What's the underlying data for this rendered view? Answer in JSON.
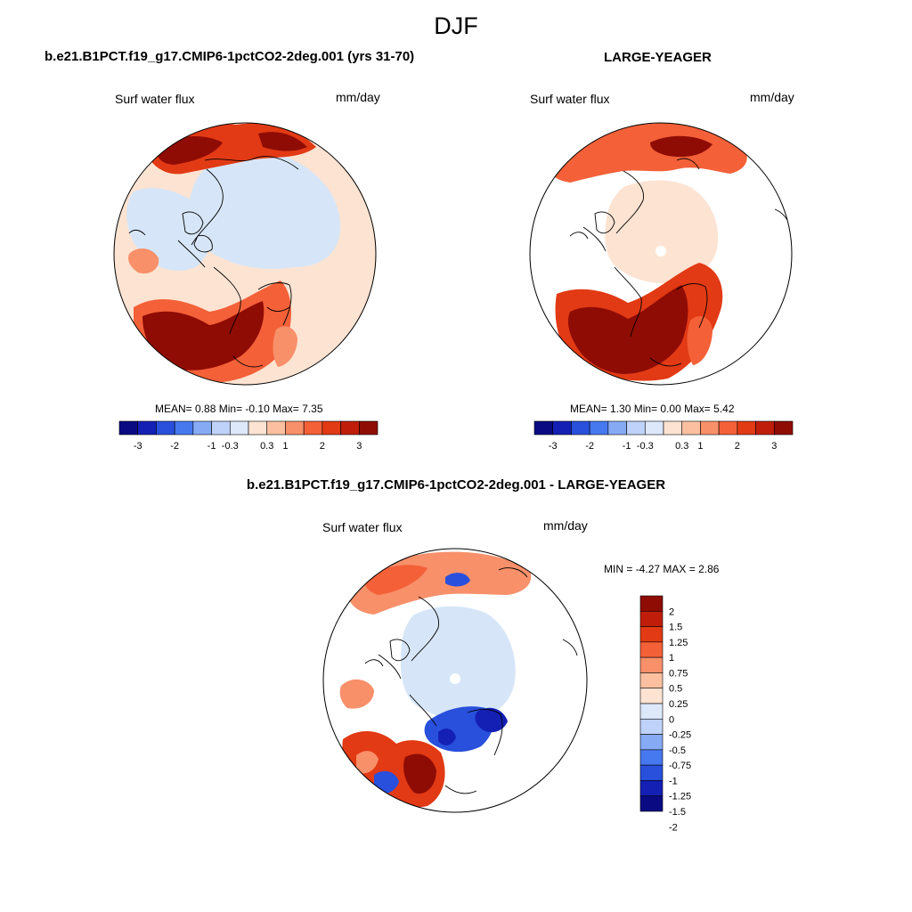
{
  "season": "DJF",
  "panels": {
    "case": {
      "title": "b.e21.B1PCT.f19_g17.CMIP6-1pctCO2-2deg.001 (yrs 31-70)",
      "variable": "Surf water flux",
      "units": "mm/day",
      "stats": {
        "mean_label": "MEAN=",
        "mean": "0.88",
        "min_label": "Min=",
        "min": "-0.10",
        "max_label": "Max=",
        "max": "7.35"
      }
    },
    "obs": {
      "title": "LARGE-YEAGER",
      "variable": "Surf water flux",
      "units": "mm/day",
      "stats": {
        "mean_label": "MEAN=",
        "mean": "1.30",
        "min_label": "Min=",
        "min": "0.00",
        "max_label": "Max=",
        "max": "5.42"
      }
    },
    "diff": {
      "title": "b.e21.B1PCT.f19_g17.CMIP6-1pctCO2-2deg.001 - LARGE-YEAGER",
      "variable": "Surf water flux",
      "units": "mm/day",
      "stats": {
        "min_label": "MIN =",
        "min": "-4.27",
        "max_label": "MAX =",
        "max": "2.86"
      }
    }
  },
  "colorbar_abs": {
    "labels": [
      "-3",
      "-2",
      "-1",
      "-0.3",
      "0.3",
      "1",
      "2",
      "3"
    ],
    "colors": [
      "#0a0a82",
      "#1420b4",
      "#2850dc",
      "#4678f0",
      "#87aaf5",
      "#bed2fa",
      "#dde8fb",
      "#fde3d2",
      "#fcc0a0",
      "#f8906a",
      "#f46038",
      "#e23a14",
      "#c01e0a",
      "#8f0c05"
    ]
  },
  "colorbar_diff": {
    "labels": [
      "2",
      "1.5",
      "1.25",
      "1",
      "0.75",
      "0.5",
      "0.25",
      "0",
      "-0.25",
      "-0.5",
      "-0.75",
      "-1",
      "-1.25",
      "-1.5",
      "-2"
    ],
    "colors": [
      "#8f0c05",
      "#c01e0a",
      "#e23a14",
      "#f46038",
      "#f8906a",
      "#fcc0a0",
      "#fde3d2",
      "#dde8fb",
      "#bed2fa",
      "#87aaf5",
      "#4678f0",
      "#2850dc",
      "#1420b4",
      "#0a0a82"
    ]
  },
  "map_colors": {
    "light_blue": "#d6e6f8",
    "peach": "#fde3d2",
    "salmon": "#f8906a",
    "orange_red": "#f46038",
    "red": "#e23a14",
    "dark_red": "#8f0c05",
    "blue": "#2850dc",
    "dark_blue": "#1420b4",
    "land_white": "#ffffff"
  }
}
